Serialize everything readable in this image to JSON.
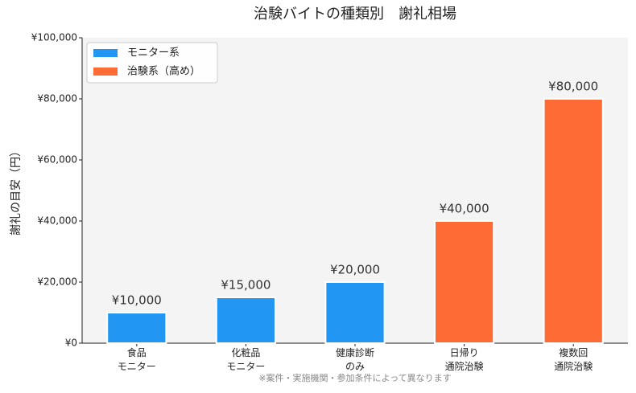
{
  "chart_data": {
    "type": "bar",
    "title": "治験バイトの種類別　謝礼相場",
    "y_label": "謝礼の目安（円）",
    "footnote": "※案件・実施機関・参加条件によって異なります",
    "categories": [
      "食品\nモニター",
      "化粧品\nモニター",
      "健康診断\nのみ",
      "日帰り\n通院治験",
      "複数回\n通院治験"
    ],
    "series": [
      {
        "name": "モニター系",
        "color": "#2196f3",
        "values": [
          10000,
          15000,
          20000,
          null,
          null
        ],
        "value_labels": [
          "¥10,000",
          "¥15,000",
          "¥20,000",
          null,
          null
        ]
      },
      {
        "name": "治験系（高め）",
        "color": "#ff6b35",
        "values": [
          null,
          null,
          null,
          40000,
          80000
        ],
        "value_labels": [
          null,
          null,
          null,
          "¥40,000",
          "¥80,000"
        ]
      }
    ],
    "ylim": [
      0,
      100000
    ],
    "yticks": [
      {
        "value": 0,
        "label": "¥0"
      },
      {
        "value": 20000,
        "label": "¥20,000"
      },
      {
        "value": 40000,
        "label": "¥40,000"
      },
      {
        "value": 60000,
        "label": "¥60,000"
      },
      {
        "value": 80000,
        "label": "¥80,000"
      },
      {
        "value": 100000,
        "label": "¥100,000"
      }
    ],
    "legend": "upper left"
  }
}
